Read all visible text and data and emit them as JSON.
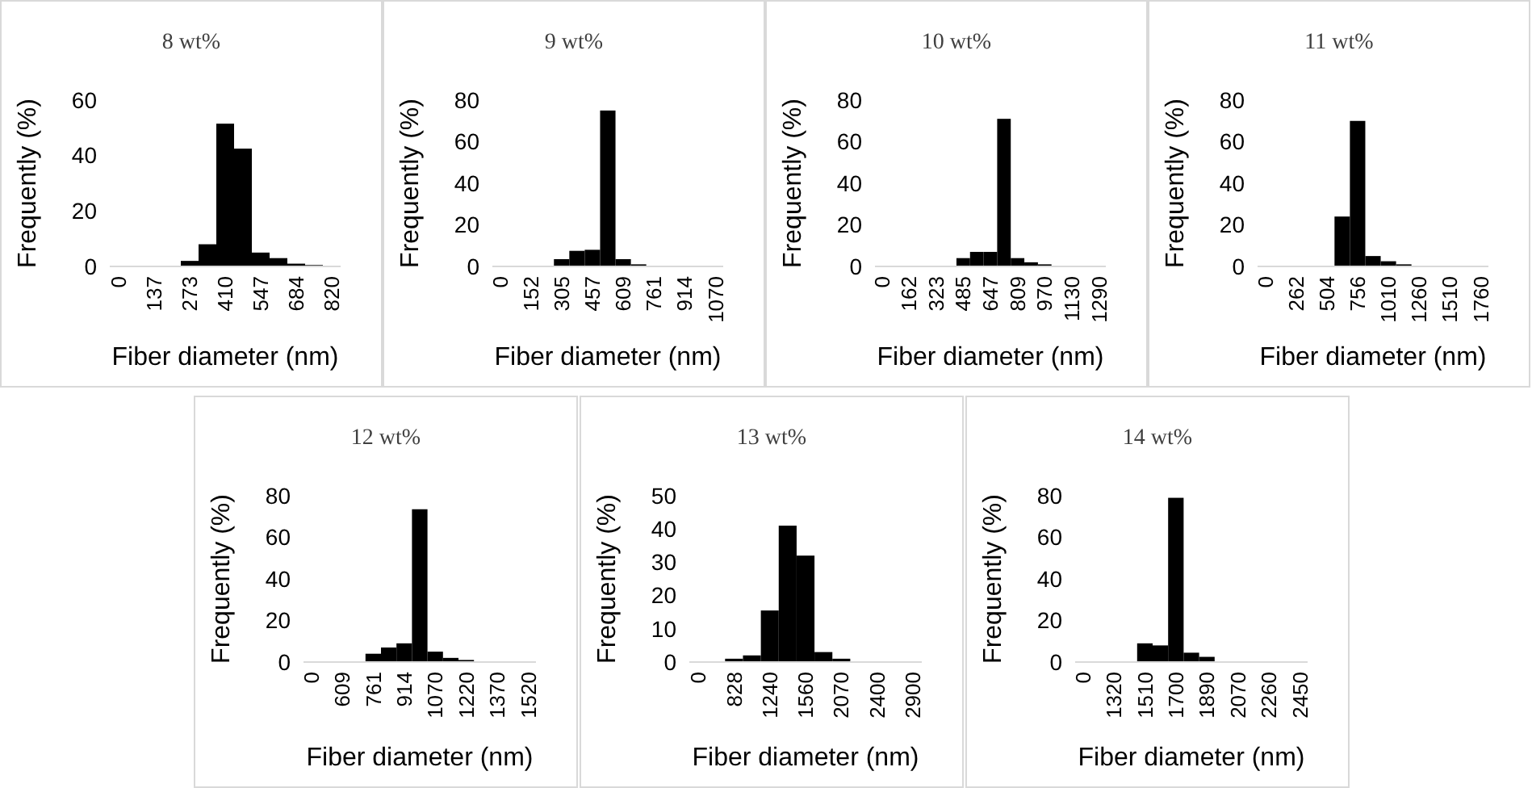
{
  "chart_data": [
    {
      "type": "bar",
      "title": "8 wt%",
      "xlabel": "Fiber diameter (nm)",
      "ylabel": "Frequently (%)",
      "categories": [
        "0",
        null,
        "137",
        null,
        "273",
        null,
        "410",
        null,
        "547",
        null,
        "684",
        null,
        "820"
      ],
      "values": [
        0,
        0,
        0,
        0,
        2,
        8,
        51.5,
        42.5,
        5,
        3,
        1,
        0.5,
        0
      ],
      "color": "#000000",
      "ylim": [
        0,
        60
      ],
      "yticks": [
        0,
        20,
        40,
        60
      ]
    },
    {
      "type": "bar",
      "title": "9 wt%",
      "xlabel": "Fiber diameter (nm)",
      "ylabel": "Frequently (%)",
      "categories": [
        "0",
        null,
        "152",
        null,
        "305",
        null,
        "457",
        null,
        "609",
        null,
        "761",
        null,
        "914",
        null,
        "1070"
      ],
      "values": [
        0,
        0,
        0,
        0,
        3.5,
        7.5,
        8,
        75,
        3.5,
        1,
        0,
        0,
        0,
        0,
        0
      ],
      "color": "#000000",
      "ylim": [
        0,
        80
      ],
      "yticks": [
        0,
        20,
        40,
        60,
        80
      ]
    },
    {
      "type": "bar",
      "title": "10 wt%",
      "xlabel": "Fiber diameter (nm)",
      "ylabel": "Frequently (%)",
      "categories": [
        "0",
        null,
        "162",
        null,
        "323",
        null,
        "485",
        null,
        "647",
        null,
        "809",
        null,
        "970",
        null,
        "1130",
        null,
        "1290"
      ],
      "values": [
        0,
        0,
        0,
        0,
        0,
        0,
        4,
        7,
        7,
        71,
        4,
        2,
        1,
        0,
        0,
        0,
        0
      ],
      "color": "#000000",
      "ylim": [
        0,
        80
      ],
      "yticks": [
        0,
        20,
        40,
        60,
        80
      ]
    },
    {
      "type": "bar",
      "title": "11 wt%",
      "xlabel": "Fiber diameter (nm)",
      "ylabel": "Frequently (%)",
      "categories": [
        "0",
        null,
        "262",
        null,
        "504",
        null,
        "756",
        null,
        "1010",
        null,
        "1260",
        null,
        "1510",
        null,
        "1760"
      ],
      "values": [
        0,
        0,
        0,
        0,
        0,
        24,
        70,
        5,
        2.5,
        1,
        0,
        0,
        0,
        0,
        0
      ],
      "color": "#000000",
      "ylim": [
        0,
        80
      ],
      "yticks": [
        0,
        20,
        40,
        60,
        80
      ]
    },
    {
      "type": "bar",
      "title": "12 wt%",
      "xlabel": "Fiber diameter (nm)",
      "ylabel": "Frequently (%)",
      "categories": [
        "0",
        null,
        "609",
        null,
        "761",
        null,
        "914",
        null,
        "1070",
        null,
        "1220",
        null,
        "1370",
        null,
        "1520"
      ],
      "values": [
        0,
        0,
        0,
        0,
        4,
        7,
        9,
        73.5,
        5,
        2,
        1,
        0,
        0,
        0,
        0
      ],
      "color": "#000000",
      "ylim": [
        0,
        80
      ],
      "yticks": [
        0,
        20,
        40,
        60,
        80
      ]
    },
    {
      "type": "bar",
      "title": "13 wt%",
      "xlabel": "Fiber diameter (nm)",
      "ylabel": "Frequently (%)",
      "categories": [
        "0",
        null,
        "828",
        null,
        "1240",
        null,
        "1560",
        null,
        "2070",
        null,
        "2400",
        null,
        "2900"
      ],
      "values": [
        0,
        0,
        1,
        2,
        15.5,
        41,
        32,
        3,
        1,
        0,
        0,
        0,
        0
      ],
      "color": "#000000",
      "ylim": [
        0,
        50
      ],
      "yticks": [
        0,
        10,
        20,
        30,
        40,
        50
      ]
    },
    {
      "type": "bar",
      "title": "14 wt%",
      "xlabel": "Fiber diameter (nm)",
      "ylabel": "Frequently (%)",
      "categories": [
        "0",
        null,
        "1320",
        null,
        "1510",
        null,
        "1700",
        null,
        "1890",
        null,
        "2070",
        null,
        "2260",
        null,
        "2450"
      ],
      "values": [
        0,
        0,
        0,
        0,
        9,
        8,
        79,
        4.5,
        2.5,
        0,
        0,
        0,
        0,
        0,
        0
      ],
      "color": "#000000",
      "ylim": [
        0,
        80
      ],
      "yticks": [
        0,
        20,
        40,
        60,
        80
      ]
    }
  ]
}
